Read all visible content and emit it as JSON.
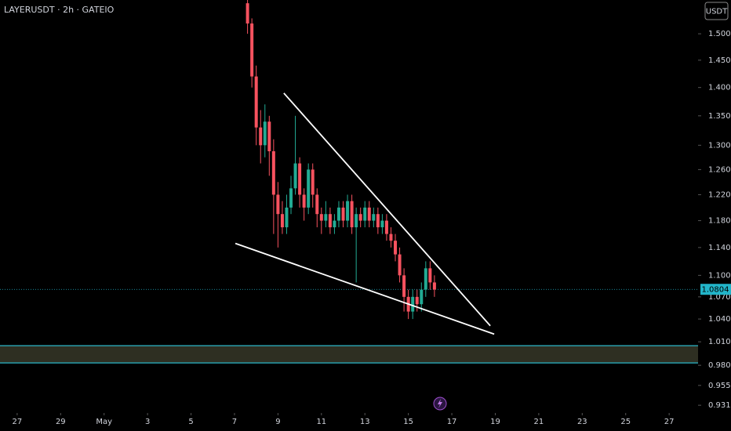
{
  "chart_data": {
    "type": "candlestick",
    "title": "LAYERUSDT · 2h · GATEIO",
    "currency": "USDT",
    "log": true,
    "up_color": "#22ab94",
    "down_color": "#f7525f",
    "x": [
      7.6,
      7.8,
      8.0,
      8.2,
      8.4,
      8.6,
      8.8,
      9.0,
      9.2,
      9.4,
      9.6,
      9.8,
      10.0,
      10.2,
      10.4,
      10.6,
      10.8,
      11.0,
      11.2,
      11.4,
      11.6,
      11.8,
      12.0,
      12.2,
      12.4,
      12.6,
      12.8,
      13.0,
      13.2,
      13.4,
      13.6,
      13.8,
      14.0,
      14.2,
      14.4,
      14.6,
      14.8,
      15.0,
      15.2,
      15.4,
      15.6,
      15.8,
      16.0,
      16.2
    ],
    "open": [
      1.56,
      1.52,
      1.42,
      1.33,
      1.3,
      1.34,
      1.29,
      1.22,
      1.19,
      1.17,
      1.2,
      1.23,
      1.27,
      1.22,
      1.2,
      1.26,
      1.22,
      1.19,
      1.18,
      1.19,
      1.17,
      1.18,
      1.2,
      1.18,
      1.21,
      1.17,
      1.19,
      1.18,
      1.2,
      1.18,
      1.19,
      1.17,
      1.18,
      1.16,
      1.15,
      1.13,
      1.1,
      1.07,
      1.05,
      1.07,
      1.06,
      1.08,
      1.11,
      1.09
    ],
    "high": [
      1.57,
      1.53,
      1.44,
      1.36,
      1.37,
      1.35,
      1.31,
      1.24,
      1.21,
      1.22,
      1.25,
      1.35,
      1.28,
      1.23,
      1.27,
      1.27,
      1.23,
      1.2,
      1.21,
      1.2,
      1.19,
      1.21,
      1.21,
      1.22,
      1.22,
      1.2,
      1.2,
      1.21,
      1.21,
      1.2,
      1.2,
      1.19,
      1.19,
      1.17,
      1.16,
      1.14,
      1.11,
      1.08,
      1.08,
      1.08,
      1.09,
      1.12,
      1.12,
      1.1
    ],
    "low": [
      1.5,
      1.4,
      1.3,
      1.27,
      1.28,
      1.25,
      1.16,
      1.14,
      1.16,
      1.16,
      1.19,
      1.22,
      1.2,
      1.18,
      1.19,
      1.2,
      1.17,
      1.16,
      1.17,
      1.16,
      1.16,
      1.17,
      1.17,
      1.17,
      1.16,
      1.09,
      1.17,
      1.17,
      1.17,
      1.17,
      1.16,
      1.16,
      1.15,
      1.14,
      1.12,
      1.09,
      1.05,
      1.04,
      1.04,
      1.05,
      1.05,
      1.07,
      1.08,
      1.07
    ],
    "close": [
      1.52,
      1.42,
      1.33,
      1.3,
      1.34,
      1.29,
      1.22,
      1.19,
      1.17,
      1.2,
      1.23,
      1.27,
      1.22,
      1.2,
      1.26,
      1.22,
      1.19,
      1.18,
      1.19,
      1.17,
      1.18,
      1.2,
      1.18,
      1.21,
      1.17,
      1.19,
      1.18,
      1.2,
      1.18,
      1.19,
      1.17,
      1.18,
      1.16,
      1.15,
      1.13,
      1.1,
      1.07,
      1.05,
      1.07,
      1.06,
      1.08,
      1.11,
      1.09,
      1.08
    ],
    "last_price": 1.0804,
    "last_price_color": "#22b5c9",
    "trendlines": [
      {
        "color": "#ffffff",
        "x": [
          9.27,
          18.77
        ],
        "y": [
          1.39,
          1.031
        ]
      },
      {
        "color": "#ffffff",
        "x": [
          7.04,
          18.95
        ],
        "y": [
          1.146,
          1.02
        ]
      }
    ],
    "zones": [
      {
        "low": 0.983,
        "high": 1.005,
        "color": "#2e2f22",
        "line_color": "#2bb7c9"
      }
    ],
    "xlim": [
      -3.79,
      28.33
    ],
    "ylim": [
      0.9218,
      1.5665
    ],
    "xticks": [
      {
        "value": -3,
        "label": "27"
      },
      {
        "value": -1,
        "label": "29"
      },
      {
        "value": 1,
        "label": "May"
      },
      3,
      5,
      7,
      9,
      11,
      13,
      15,
      17,
      19,
      21,
      23,
      25,
      27
    ],
    "yticks": [
      {
        "value": 1.5,
        "label": "1.5000"
      },
      {
        "value": 1.45,
        "label": "1.4500"
      },
      {
        "value": 1.4,
        "label": "1.4000"
      },
      {
        "value": 1.35,
        "label": "1.3500"
      },
      {
        "value": 1.3,
        "label": "1.3000"
      },
      {
        "value": 1.26,
        "label": "1.2600"
      },
      {
        "value": 1.22,
        "label": "1.2200"
      },
      {
        "value": 1.18,
        "label": "1.1800"
      },
      {
        "value": 1.14,
        "label": "1.1400"
      },
      {
        "value": 1.1,
        "label": "1.1000"
      },
      {
        "value": 1.07,
        "label": "1.0700"
      },
      {
        "value": 1.04,
        "label": "1.0400"
      },
      {
        "value": 1.01,
        "label": "1.0100"
      },
      {
        "value": 0.98,
        "label": "0.9800"
      },
      {
        "value": 0.955,
        "label": "0.9550"
      },
      {
        "value": 0.931,
        "label": "0.9310"
      }
    ]
  }
}
